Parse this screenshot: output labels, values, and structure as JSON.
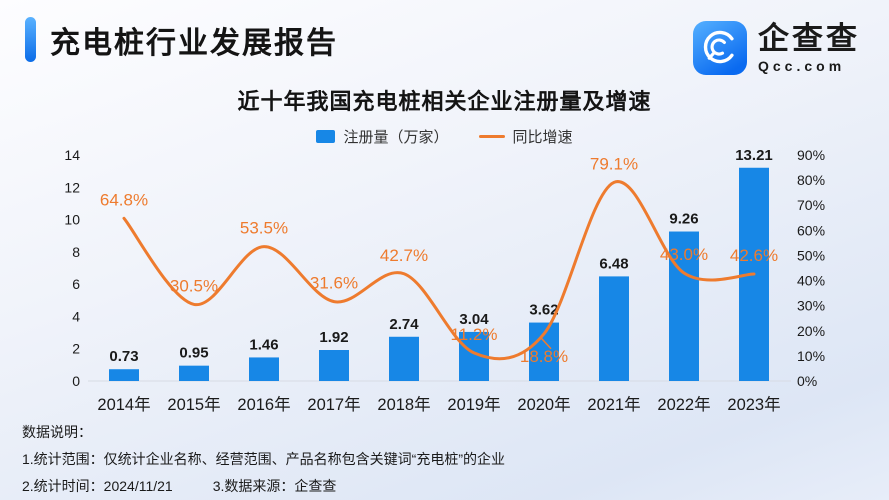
{
  "header": {
    "title": "充电桩行业发展报告"
  },
  "logo": {
    "brand": "企查查",
    "domain": "Qcc.com",
    "icon": "qcc-magnifier-icon",
    "icon_color_top": "#55b0ff",
    "icon_color_bottom": "#0a6af0"
  },
  "chart_data": {
    "type": "bar",
    "title": "近十年我国充电桩相关企业注册量及增速",
    "categories": [
      "2014年",
      "2015年",
      "2016年",
      "2017年",
      "2018年",
      "2019年",
      "2020年",
      "2021年",
      "2022年",
      "2023年"
    ],
    "series": [
      {
        "name": "注册量（万家）",
        "type": "bar",
        "color": "#1787e6",
        "values": [
          0.73,
          0.95,
          1.46,
          1.92,
          2.74,
          3.04,
          3.62,
          6.48,
          9.26,
          13.21
        ]
      },
      {
        "name": "同比增速",
        "type": "line",
        "color": "#ee7b2e",
        "unit": "%",
        "values": [
          64.8,
          30.5,
          53.5,
          31.6,
          42.7,
          11.2,
          18.8,
          79.1,
          43.0,
          42.6
        ]
      }
    ],
    "left_axis": {
      "min": 0,
      "max": 14,
      "step": 2
    },
    "right_axis": {
      "min": 0,
      "max": 90,
      "step": 10,
      "unit": "%"
    },
    "legend_position": "top-center",
    "grid": false,
    "baseline_color": "#d7dbe4",
    "value_label_color": "#1a1a1a",
    "line_label_below_indices": [
      6
    ]
  },
  "notes": {
    "heading": "数据说明：",
    "line1": "1.统计范围：仅统计企业名称、经营范围、产品名称包含关键词“充电桩”的企业",
    "line2_time": "2.统计时间：2024/11/21",
    "line2_source": "3.数据来源：企查查"
  }
}
